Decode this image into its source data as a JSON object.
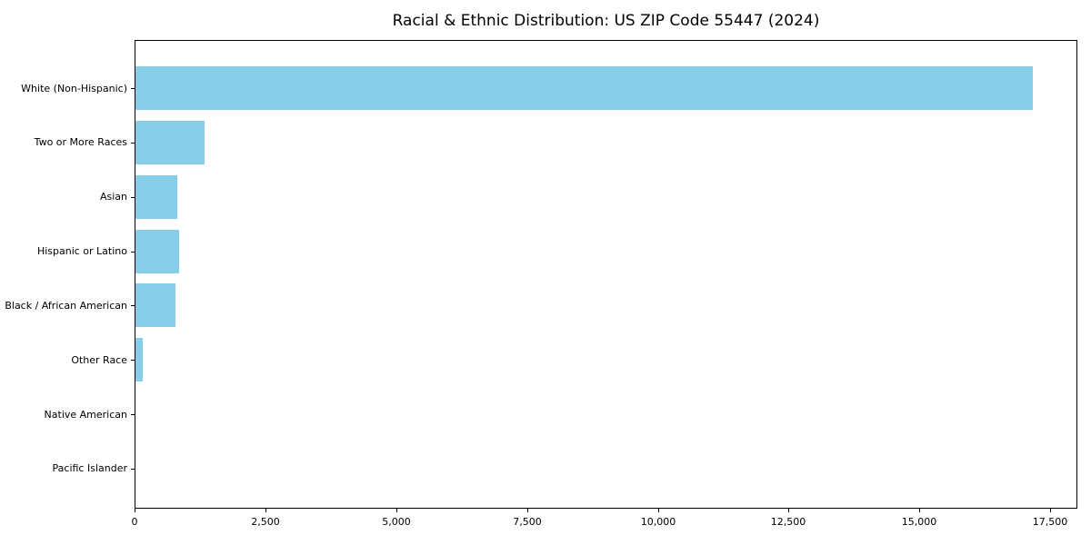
{
  "title": "Racial & Ethnic Distribution: US ZIP Code 55447 (2024)",
  "chart_data": {
    "type": "bar",
    "orientation": "horizontal",
    "title": "Racial & Ethnic Distribution: US ZIP Code 55447 (2024)",
    "categories": [
      "White (Non-Hispanic)",
      "Two or More Races",
      "Asian",
      "Hispanic or Latino",
      "Black / African American",
      "Other Race",
      "Native American",
      "Pacific Islander"
    ],
    "values": [
      17150,
      1320,
      800,
      830,
      765,
      140,
      0,
      0
    ],
    "bar_color": "#87CEEB",
    "axis_color": "#000000",
    "xlabel": "",
    "ylabel": "",
    "xlim": [
      0,
      18000
    ],
    "x_ticks": [
      0,
      2500,
      5000,
      7500,
      10000,
      12500,
      15000,
      17500
    ],
    "x_tick_labels": [
      "0",
      "2,500",
      "5,000",
      "7,500",
      "10,000",
      "12,500",
      "15,000",
      "17,500"
    ],
    "grid": false,
    "legend": null
  }
}
